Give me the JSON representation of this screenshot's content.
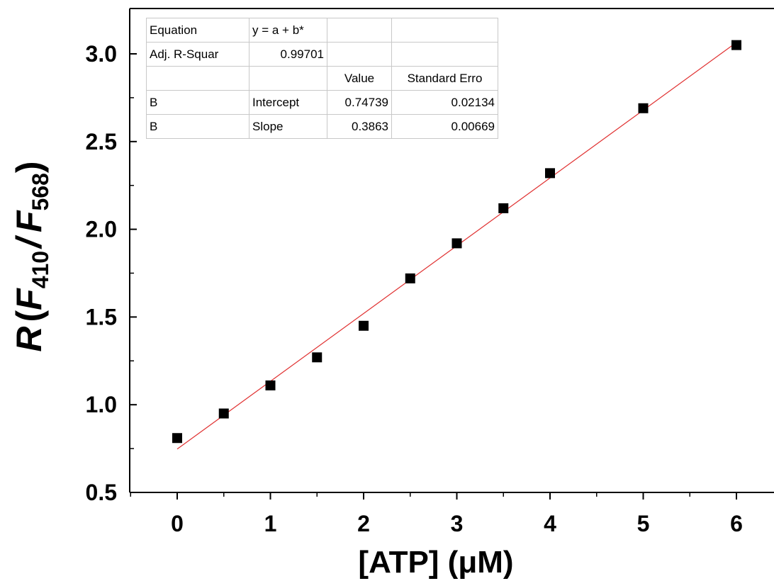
{
  "chart_data": {
    "type": "scatter",
    "xlabel": "[ATP] (μM)",
    "ylabel": {
      "main": "R",
      "open": "(",
      "f1": "F",
      "sub1": "410",
      "slash": "/",
      "f2": "F",
      "sub2": "568",
      "close": ")"
    },
    "xlim": [
      -0.5,
      6.4
    ],
    "ylim": [
      0.5,
      3.25
    ],
    "xticks": [
      0,
      1,
      2,
      3,
      4,
      5,
      6
    ],
    "yticks": [
      0.5,
      1.0,
      1.5,
      2.0,
      2.5,
      3.0
    ],
    "ytick_labels": [
      "0.5",
      "1.0",
      "1.5",
      "2.0",
      "2.5",
      "3.0"
    ],
    "grid": false,
    "series": [
      {
        "x": [
          0,
          0.5,
          1,
          1.5,
          2,
          2.5,
          3,
          3.5,
          4,
          5,
          6
        ],
        "y": [
          0.81,
          0.95,
          1.11,
          1.27,
          1.45,
          1.72,
          1.92,
          2.12,
          2.32,
          2.69,
          3.05
        ],
        "marker": "square",
        "color": "#000000"
      }
    ],
    "fit": {
      "intercept": 0.74739,
      "slope": 0.3863,
      "x_range": [
        0,
        6
      ],
      "color": "#e03030"
    },
    "fit_table": {
      "rows": [
        [
          "Equation",
          "y = a + b*",
          "",
          ""
        ],
        [
          "Adj. R-Squar",
          "0.99701",
          "",
          ""
        ],
        [
          "",
          "",
          "Value",
          "Standard Erro"
        ],
        [
          "B",
          "Intercept",
          "0.74739",
          "0.02134"
        ],
        [
          "B",
          "Slope",
          "0.3863",
          "0.00669"
        ]
      ]
    }
  }
}
